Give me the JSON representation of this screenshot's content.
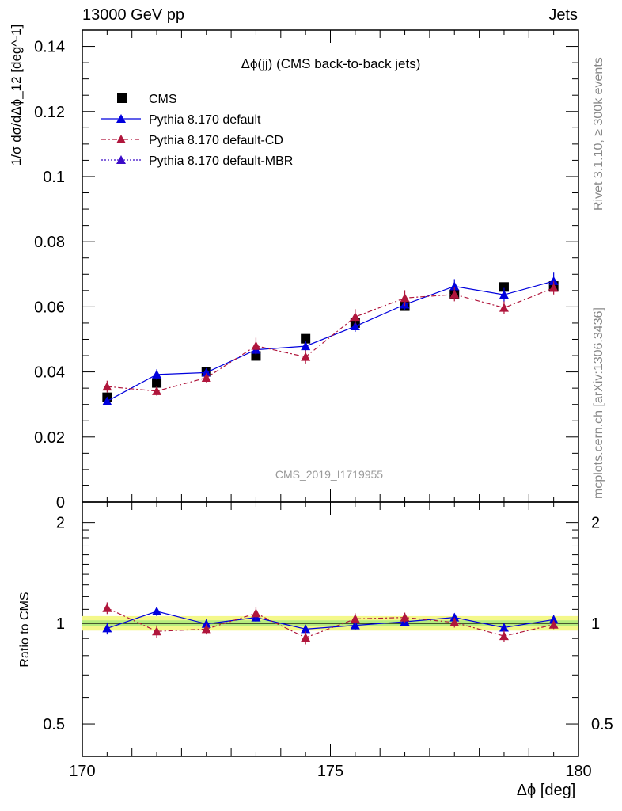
{
  "header": {
    "left": "13000 GeV pp",
    "right": "Jets"
  },
  "side_labels": {
    "rivet": "Rivet 3.1.10, ≥ 300k events",
    "mcplots": "mcplots.cern.ch [arXiv:1306.3436]"
  },
  "chart_data": [
    {
      "type": "scatter",
      "title": "Δϕ(jj) (CMS back-to-back jets)",
      "watermark": "CMS_2019_I1719955",
      "ylabel": "1/σ dσ/dΔϕ_12 [deg^-1]",
      "xlim": [
        170,
        180
      ],
      "ylim": [
        0,
        0.145
      ],
      "y_ticks": [
        "0",
        "0.02",
        "0.04",
        "0.06",
        "0.08",
        "0.1",
        "0.12",
        "0.14"
      ],
      "x": [
        170.5,
        171.5,
        172.5,
        173.5,
        174.5,
        175.5,
        176.5,
        177.5,
        178.5,
        179.5
      ],
      "series": [
        {
          "name": "CMS",
          "marker": "square",
          "color": "#000000",
          "values": [
            0.0322,
            0.0366,
            0.04,
            0.0449,
            0.0502,
            0.055,
            0.0602,
            0.0638,
            0.0661,
            0.0664
          ]
        },
        {
          "name": "Pythia 8.170 default",
          "marker": "triangle",
          "line": "solid",
          "color": "#0000dd",
          "values": [
            0.031,
            0.0392,
            0.0398,
            0.0468,
            0.0479,
            0.054,
            0.0607,
            0.0663,
            0.0637,
            0.0679
          ],
          "errors": [
            0.0012,
            0.0016,
            0.0013,
            0.0016,
            0.0015,
            0.0017,
            0.0018,
            0.0022,
            0.0021,
            0.0026
          ]
        },
        {
          "name": "Pythia 8.170 default-CD",
          "marker": "triangle",
          "line": "dashdot",
          "color": "#b0163c",
          "values": [
            0.0355,
            0.0341,
            0.0382,
            0.048,
            0.0446,
            0.0569,
            0.0627,
            0.0638,
            0.0597,
            0.0658
          ],
          "errors": [
            0.0018,
            0.0014,
            0.0014,
            0.0025,
            0.002,
            0.0024,
            0.0024,
            0.0021,
            0.002,
            0.002
          ]
        }
      ],
      "legend": [
        "CMS",
        "Pythia 8.170 default",
        "Pythia 8.170 default-CD",
        "Pythia 8.170 default-MBR"
      ],
      "legend_extra": {
        "name": "Pythia 8.170 default-MBR",
        "marker": "triangle",
        "line": "dotted",
        "color": "#3b0bc8"
      }
    },
    {
      "type": "scatter",
      "ylabel": "Ratio to CMS",
      "xlabel": "Δϕ_12 [deg]",
      "xlim": [
        170,
        180
      ],
      "ylim": [
        0.4,
        2.3
      ],
      "y_scale": "log",
      "y_ticks": [
        "0.5",
        "1",
        "2"
      ],
      "x_ticks": [
        "170",
        "175",
        "180"
      ],
      "band": {
        "center": 1.0,
        "inner": 0.02,
        "outer": 0.05
      },
      "x": [
        170.5,
        171.5,
        172.5,
        173.5,
        174.5,
        175.5,
        176.5,
        177.5,
        178.5,
        179.5
      ],
      "series": [
        {
          "name": "Pythia 8.170 default",
          "color": "#0000dd",
          "values": [
            0.965,
            1.085,
            0.995,
            1.04,
            0.96,
            0.985,
            1.01,
            1.04,
            0.97,
            1.025
          ],
          "errors": [
            0.04,
            0.035,
            0.035,
            0.03,
            0.025,
            0.03,
            0.03,
            0.03,
            0.028,
            0.035
          ]
        },
        {
          "name": "Pythia 8.170 default-CD",
          "color": "#b0163c",
          "values": [
            1.11,
            0.945,
            0.96,
            1.07,
            0.905,
            1.03,
            1.04,
            1.005,
            0.915,
            0.99
          ],
          "errors": [
            0.045,
            0.04,
            0.035,
            0.05,
            0.04,
            0.04,
            0.035,
            0.035,
            0.035,
            0.03
          ]
        }
      ]
    }
  ]
}
